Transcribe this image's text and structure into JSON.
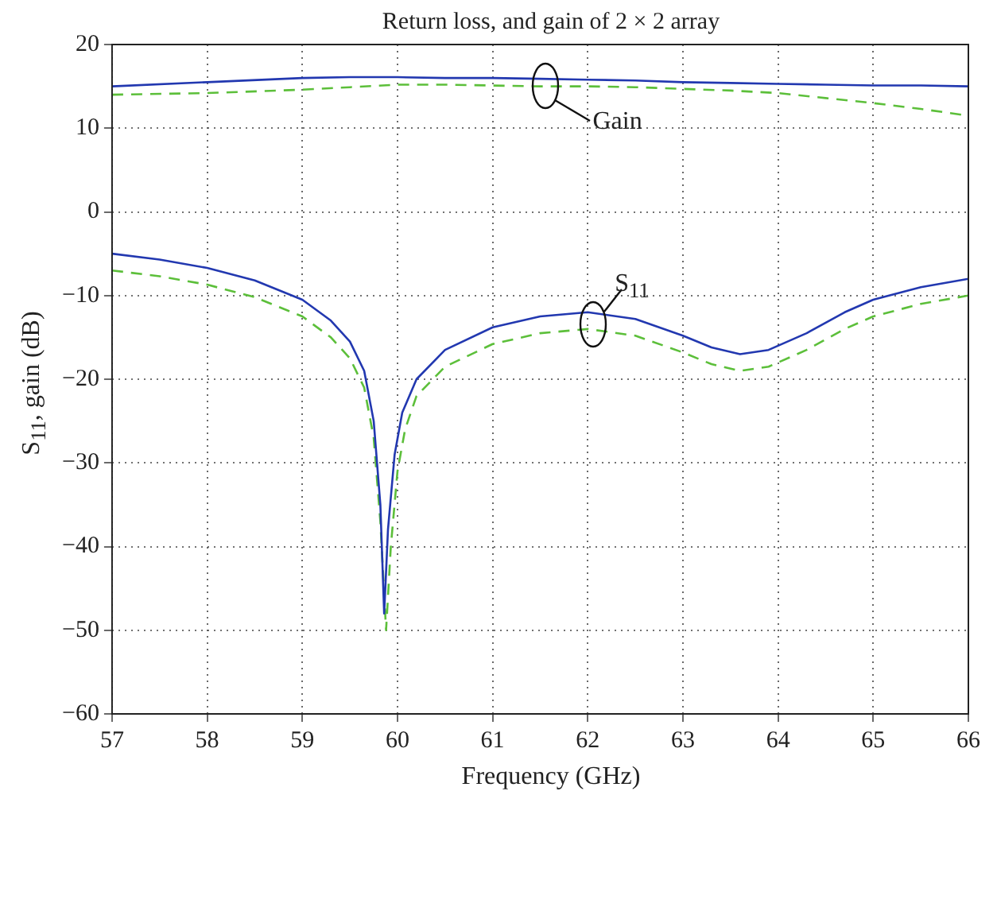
{
  "chart_data": {
    "type": "line",
    "title": "Return loss, and gain of 2 × 2 array",
    "xlabel": "Frequency (GHz)",
    "ylabel": "S$_{11}$, gain (dB)",
    "xlim": [
      57,
      66
    ],
    "xticks": [
      57,
      58,
      59,
      60,
      61,
      62,
      63,
      64,
      65,
      66
    ],
    "ylim": [
      -60,
      20
    ],
    "yticks": [
      -60,
      -50,
      -40,
      -30,
      -20,
      -10,
      0,
      10,
      20
    ],
    "grid": true,
    "marker": "none",
    "annotations": [
      {
        "text": "Gain",
        "x": 61.55,
        "y": 15
      },
      {
        "text": "S$_{11}$",
        "x": 62.05,
        "y": -13.5
      }
    ],
    "series": [
      {
        "color": "#2238b0",
        "line_style": "solid",
        "x": [
          57,
          58,
          59,
          59.5,
          60,
          60.5,
          61,
          61.5,
          62,
          62.5,
          63,
          63.5,
          64,
          64.5,
          65,
          65.5,
          66
        ],
        "values": [
          15,
          15.5,
          16,
          16.1,
          16.1,
          16,
          16,
          15.9,
          15.8,
          15.7,
          15.5,
          15.4,
          15.3,
          15.2,
          15.1,
          15.1,
          15
        ]
      },
      {
        "color": "#5cbf3a",
        "line_style": "dashed",
        "x": [
          57,
          58,
          59,
          59.5,
          60,
          60.5,
          61,
          61.5,
          62,
          62.5,
          63,
          63.5,
          64,
          64.5,
          65,
          65.5,
          66
        ],
        "values": [
          14,
          14.2,
          14.6,
          14.9,
          15.2,
          15.2,
          15.1,
          15,
          15,
          14.9,
          14.7,
          14.5,
          14.2,
          13.6,
          13,
          12.3,
          11.5
        ]
      },
      {
        "color": "#2238b0",
        "line_style": "solid",
        "x": [
          57,
          57.5,
          58,
          58.5,
          59,
          59.3,
          59.5,
          59.65,
          59.75,
          59.82,
          59.86,
          59.9,
          59.97,
          60.05,
          60.2,
          60.5,
          61,
          61.5,
          62,
          62.5,
          63,
          63.3,
          63.6,
          63.9,
          64.3,
          64.7,
          65,
          65.5,
          66
        ],
        "values": [
          -5,
          -5.7,
          -6.7,
          -8.2,
          -10.5,
          -13,
          -15.5,
          -19,
          -25,
          -35,
          -48,
          -38,
          -29,
          -24,
          -20,
          -16.5,
          -13.8,
          -12.5,
          -12,
          -12.8,
          -14.8,
          -16.2,
          -17,
          -16.5,
          -14.5,
          -12,
          -10.5,
          -9,
          -8
        ]
      },
      {
        "color": "#5cbf3a",
        "line_style": "dashed",
        "x": [
          57,
          57.5,
          58,
          58.5,
          59,
          59.3,
          59.5,
          59.65,
          59.75,
          59.82,
          59.88,
          59.93,
          60,
          60.08,
          60.2,
          60.5,
          61,
          61.5,
          62,
          62.5,
          63,
          63.3,
          63.6,
          63.9,
          64.3,
          64.7,
          65,
          65.5,
          66
        ],
        "values": [
          -7,
          -7.7,
          -8.7,
          -10.2,
          -12.5,
          -15,
          -17.5,
          -21,
          -27,
          -37,
          -50,
          -40,
          -31,
          -26,
          -22,
          -18.5,
          -15.8,
          -14.5,
          -14,
          -14.8,
          -16.8,
          -18.2,
          -19,
          -18.5,
          -16.5,
          -14,
          -12.5,
          -11,
          -10
        ]
      }
    ]
  }
}
